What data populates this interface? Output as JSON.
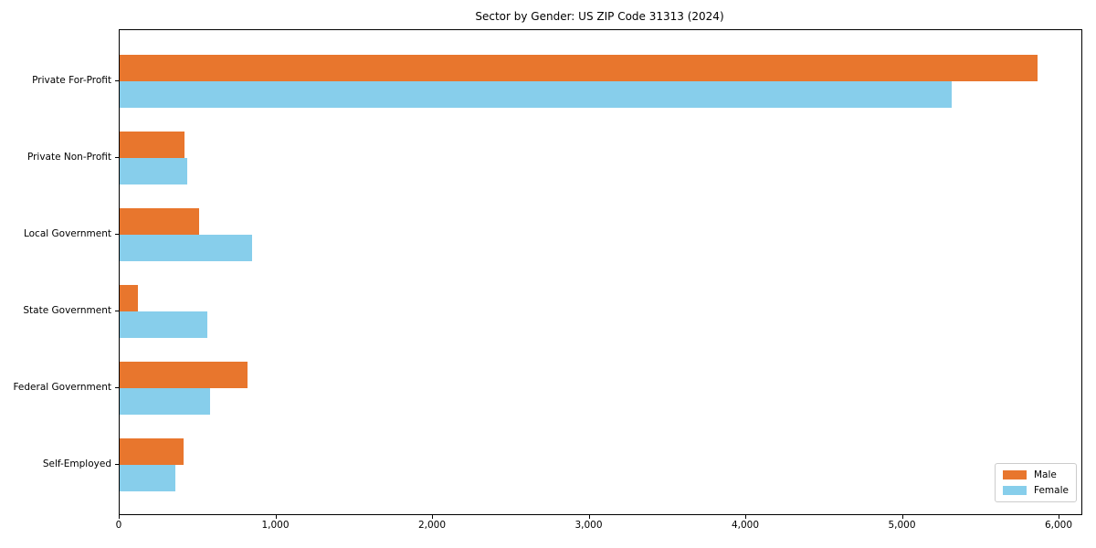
{
  "title": "Sector by Gender: US ZIP Code 31313 (2024)",
  "chart_data": {
    "type": "bar",
    "orientation": "horizontal",
    "title": "Sector by Gender: US ZIP Code 31313 (2024)",
    "categories": [
      "Private For-Profit",
      "Private Non-Profit",
      "Local Government",
      "State Government",
      "Federal Government",
      "Self-Employed"
    ],
    "series": [
      {
        "name": "Male",
        "color": "#e8762d",
        "values": [
          5860,
          415,
          505,
          115,
          815,
          405
        ]
      },
      {
        "name": "Female",
        "color": "#87ceeb",
        "values": [
          5310,
          430,
          845,
          560,
          575,
          355
        ]
      }
    ],
    "xlim": [
      0,
      6140
    ],
    "xticks": [
      0,
      1000,
      2000,
      3000,
      4000,
      5000,
      6000
    ],
    "xtick_labels": [
      "0",
      "1,000",
      "2,000",
      "3,000",
      "4,000",
      "5,000",
      "6,000"
    ],
    "grid": false,
    "legend_position": "lower right",
    "background_color": "#ffffff",
    "axis_color": "#000000"
  }
}
